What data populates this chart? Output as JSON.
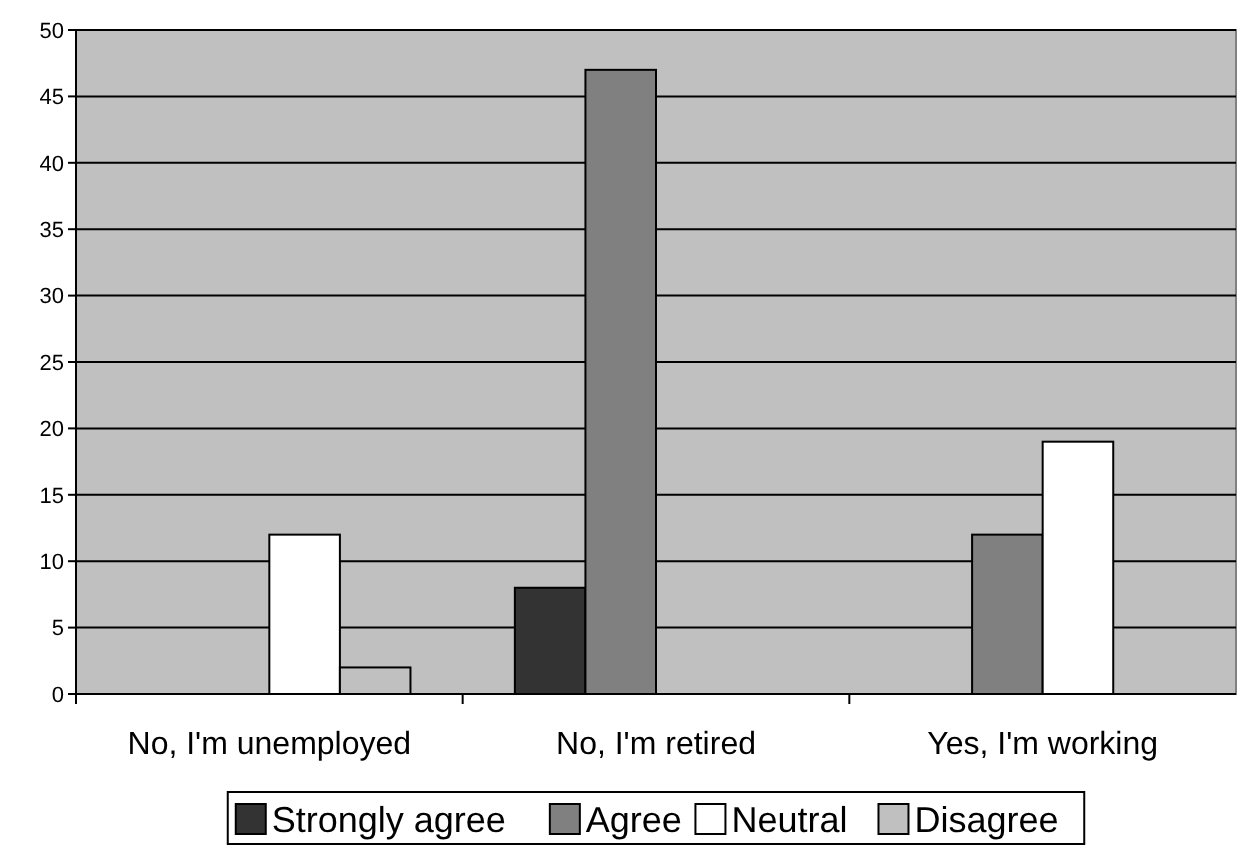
{
  "chart_data": {
    "type": "bar",
    "categories": [
      "No, I'm unemployed",
      "No, I'm retired",
      "Yes, I'm working"
    ],
    "series": [
      {
        "name": "Strongly agree",
        "color": "#333333",
        "values": [
          0,
          8,
          0
        ]
      },
      {
        "name": "Agree",
        "color": "#808080",
        "values": [
          0,
          47,
          12
        ]
      },
      {
        "name": "Neutral",
        "color": "#ffffff",
        "values": [
          12,
          0,
          19
        ]
      },
      {
        "name": "Disagree",
        "color": "#c0c0c0",
        "values": [
          2,
          0,
          0
        ]
      }
    ],
    "ylim": [
      0,
      50
    ],
    "yticks": [
      0,
      5,
      10,
      15,
      20,
      25,
      30,
      35,
      40,
      45,
      50
    ],
    "grid": "y",
    "legend": "bottom"
  }
}
